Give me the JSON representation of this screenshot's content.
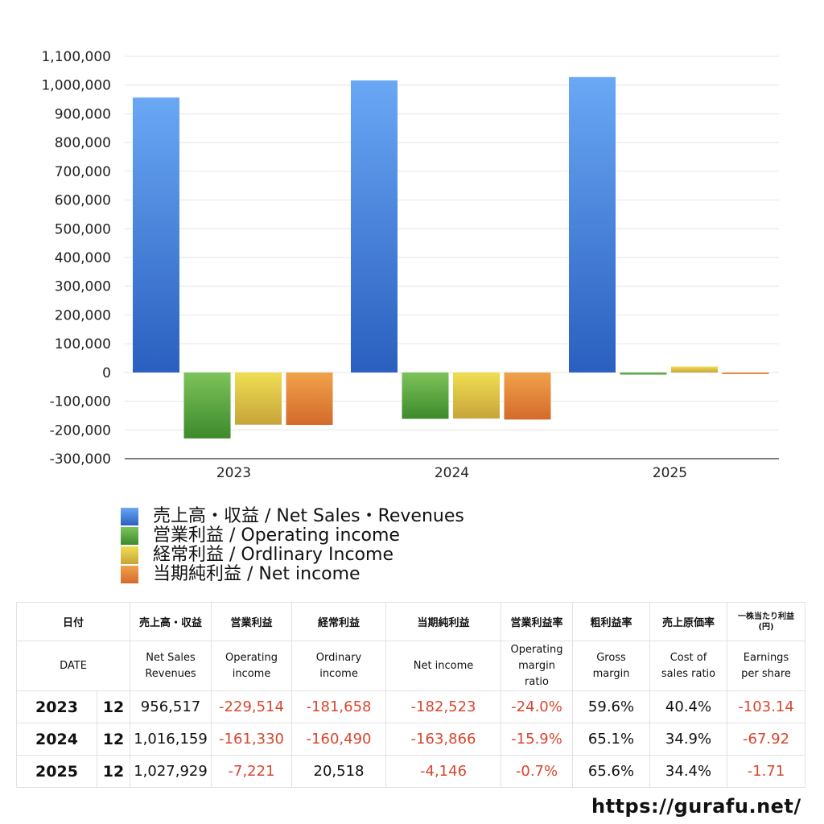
{
  "chart_data": {
    "type": "bar",
    "categories": [
      "2023",
      "2024",
      "2025"
    ],
    "ylim": [
      -300000,
      1100000
    ],
    "yticks": [
      1100000,
      1000000,
      900000,
      800000,
      700000,
      600000,
      500000,
      400000,
      300000,
      200000,
      100000,
      0,
      -100000,
      -200000,
      -300000
    ],
    "ytick_labels": [
      "1,100,000",
      "1,000,000",
      "900,000",
      "800,000",
      "700,000",
      "600,000",
      "500,000",
      "400,000",
      "300,000",
      "200,000",
      "100,000",
      "0",
      "-100,000",
      "-200,000",
      "-300,000"
    ],
    "grid": true,
    "legend_position": "bottom-left",
    "series": [
      {
        "name": "売上高・収益 / Net Sales・Revenues",
        "color_top": "#6aa8f5",
        "color_bottom": "#2a5fbf",
        "values": [
          956517,
          1016159,
          1027929
        ]
      },
      {
        "name": "営業利益 / Operating income",
        "color_top": "#7dc35a",
        "color_bottom": "#3d8a2c",
        "values": [
          -229514,
          -161330,
          -7221
        ]
      },
      {
        "name": "経常利益 / Ordlinary Income",
        "color_top": "#f0de52",
        "color_bottom": "#c7a43a",
        "values": [
          -181658,
          -160490,
          20518
        ]
      },
      {
        "name": "当期純利益 / Net income",
        "color_top": "#f0a24a",
        "color_bottom": "#d46a2c",
        "values": [
          -182523,
          -163866,
          -4146
        ]
      }
    ]
  },
  "table": {
    "headers_ja": [
      "日付",
      "売上高・収益",
      "営業利益",
      "経常利益",
      "当期純利益",
      "営業利益率",
      "粗利益率",
      "売上原価率",
      "一株当たり利益\n(円)"
    ],
    "headers_en": [
      "DATE",
      "Net Sales\nRevenues",
      "Operating\nincome",
      "Ordinary\nincome",
      "Net income",
      "Operating\nmargin\nratio",
      "Gross\nmargin",
      "Cost of\nsales ratio",
      "Earnings\nper share"
    ],
    "rows": [
      {
        "year": "2023",
        "month": "12",
        "values": [
          "956,517",
          "-229,514",
          "-181,658",
          "-182,523",
          "-24.0%",
          "59.6%",
          "40.4%",
          "-103.14"
        ]
      },
      {
        "year": "2024",
        "month": "12",
        "values": [
          "1,016,159",
          "-161,330",
          "-160,490",
          "-163,866",
          "-15.9%",
          "65.1%",
          "34.9%",
          "-67.92"
        ]
      },
      {
        "year": "2025",
        "month": "12",
        "values": [
          "1,027,929",
          "-7,221",
          "20,518",
          "-4,146",
          "-0.7%",
          "65.6%",
          "34.4%",
          "-1.71"
        ]
      }
    ]
  },
  "site_url": "https://gurafu.net/",
  "negative_color": "#d9462e"
}
